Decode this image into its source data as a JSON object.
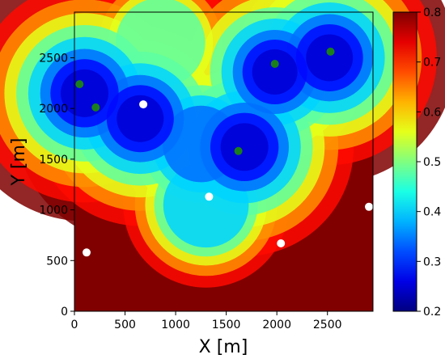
{
  "chart_data": {
    "type": "heatmap",
    "title": "",
    "xlabel": "X [m]",
    "ylabel": "Y [m]",
    "xlim": [
      0,
      2950
    ],
    "ylim": [
      0,
      2950
    ],
    "x_ticks": [
      0,
      500,
      1000,
      1500,
      2000,
      2500
    ],
    "y_ticks": [
      0,
      500,
      1000,
      1500,
      2000,
      2500
    ],
    "x_tick_labels": [
      "0",
      "500",
      "1000",
      "1500",
      "2000",
      "2500"
    ],
    "y_tick_labels": [
      "0",
      "500",
      "1000",
      "1500",
      "2000",
      "2500"
    ],
    "colormap": "jet",
    "colorbar": {
      "min": 0.2,
      "max": 0.8,
      "ticks": [
        0.2,
        0.3,
        0.4,
        0.5,
        0.6,
        0.7,
        0.8
      ],
      "tick_labels": [
        "0.2",
        "0.3",
        "0.4",
        "0.5",
        "0.6",
        "0.7",
        "0.8"
      ]
    },
    "grid": false,
    "field_value_low_region": 0.25,
    "field_value_saturated_region": 0.8,
    "field_minima": [
      {
        "x": 100,
        "y": 2150,
        "value": 0.22
      },
      {
        "x": 650,
        "y": 1900,
        "value": 0.23
      },
      {
        "x": 1680,
        "y": 1620,
        "value": 0.22
      },
      {
        "x": 2520,
        "y": 2500,
        "value": 0.23
      },
      {
        "x": 1980,
        "y": 2360,
        "value": 0.25
      },
      {
        "x": 1250,
        "y": 1650,
        "value": 0.3
      },
      {
        "x": 1300,
        "y": 1050,
        "value": 0.36
      },
      {
        "x": 850,
        "y": 2650,
        "value": 0.42
      }
    ],
    "series": [
      {
        "color": "#1b7f1b",
        "points": [
          {
            "x": 50,
            "y": 2240
          },
          {
            "x": 210,
            "y": 2010
          },
          {
            "x": 1620,
            "y": 1580
          },
          {
            "x": 1980,
            "y": 2440
          },
          {
            "x": 2530,
            "y": 2560
          }
        ]
      },
      {
        "color": "#ffffff",
        "points": [
          {
            "x": 680,
            "y": 2040
          },
          {
            "x": 1330,
            "y": 1130
          },
          {
            "x": 2040,
            "y": 670
          },
          {
            "x": 2910,
            "y": 1030
          },
          {
            "x": 120,
            "y": 580
          }
        ]
      }
    ]
  }
}
